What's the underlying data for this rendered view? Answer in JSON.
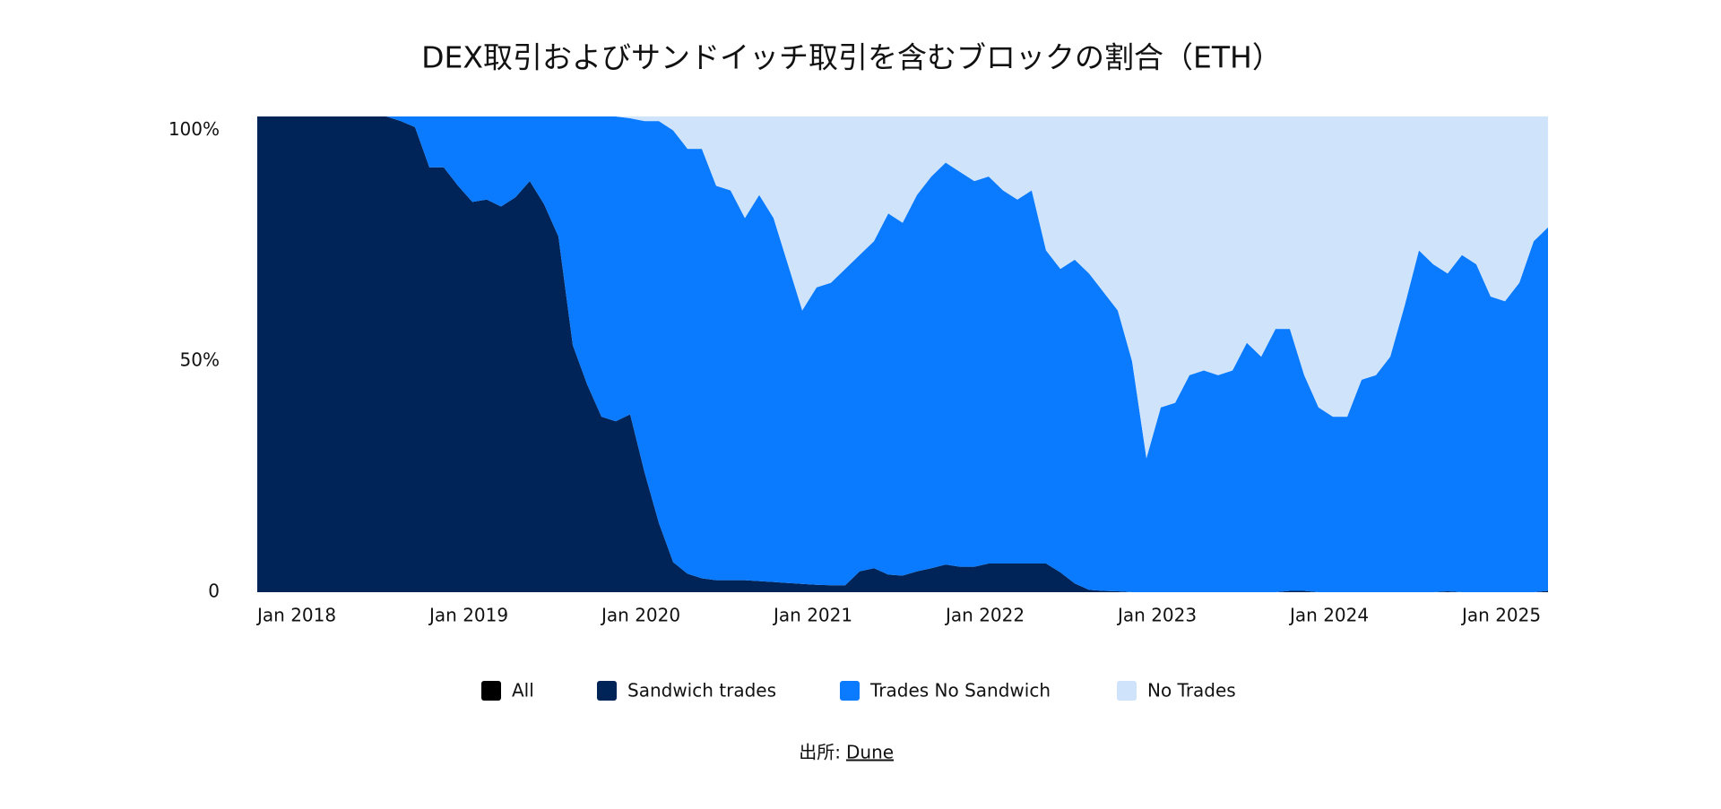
{
  "chart_data": {
    "type": "stacked_area",
    "title": "DEX取引およびサンドイッチ取引を含むブロックの割合（ETH）",
    "x": [
      "Jan 2018",
      null,
      null,
      null,
      null,
      null,
      null,
      null,
      null,
      null,
      null,
      null,
      "Jan 2019",
      null,
      null,
      null,
      null,
      null,
      null,
      null,
      null,
      null,
      null,
      null,
      "Jan 2020",
      null,
      null,
      null,
      null,
      null,
      null,
      null,
      null,
      null,
      null,
      null,
      "Jan 2021",
      null,
      null,
      null,
      null,
      null,
      null,
      null,
      null,
      null,
      null,
      null,
      "Jan 2022",
      null,
      null,
      null,
      null,
      null,
      null,
      null,
      null,
      null,
      null,
      null,
      "Jan 2023",
      null,
      null,
      null,
      null,
      null,
      null,
      null,
      null,
      null,
      null,
      null,
      "Jan 2024",
      null,
      null,
      null,
      null,
      null,
      null,
      null,
      null,
      null,
      null,
      null,
      "Jan 2025",
      null,
      null,
      null,
      null,
      null,
      null
    ],
    "series": [
      {
        "name": "All",
        "color": "#000000",
        "values": [
          0,
          0,
          0,
          0,
          0,
          0,
          0,
          0,
          0,
          0,
          0,
          0,
          0,
          0,
          0,
          0,
          0,
          0,
          0,
          0,
          0,
          0,
          0,
          0,
          0,
          0,
          0,
          0,
          0,
          0,
          0,
          0,
          0,
          0,
          0,
          0,
          0,
          0,
          0,
          0,
          0,
          0,
          0,
          0,
          0,
          0,
          0,
          0,
          0,
          0,
          0,
          0,
          0,
          0,
          0,
          0,
          0,
          0,
          0,
          0,
          0,
          0,
          0,
          0,
          0,
          0,
          0,
          0,
          0,
          0,
          0,
          0,
          0,
          0,
          0,
          0,
          0,
          0,
          0,
          0,
          0,
          0,
          0,
          0,
          0,
          0,
          0,
          0,
          0,
          0,
          0
        ]
      },
      {
        "name": "Sandwich trades",
        "color": "#002358",
        "values": [
          103,
          103,
          103,
          103,
          103,
          103,
          103,
          103,
          103,
          103,
          102,
          100.7,
          92,
          92,
          88,
          84.5,
          85,
          83.5,
          85.5,
          89,
          84,
          77,
          53.5,
          45,
          38,
          37,
          38.5,
          26,
          15,
          6.5,
          4,
          3,
          2.6,
          2.6,
          2.6,
          2.4,
          2.2,
          2,
          1.8,
          1.6,
          1.5,
          1.5,
          4.5,
          5.2,
          3.8,
          3.6,
          4.5,
          5.2,
          6,
          5.5,
          5.5,
          6.2,
          6.2,
          6.2,
          6.2,
          6.2,
          4.3,
          1.9,
          0.5,
          0.3,
          0.2,
          0,
          0,
          0,
          0,
          0,
          0,
          0,
          0,
          0,
          0,
          0,
          0.3,
          0.3,
          0,
          0,
          0,
          0,
          0,
          0,
          0,
          0,
          0,
          0.2,
          0,
          0,
          0,
          0,
          0,
          0,
          0.3
        ]
      },
      {
        "name": "Trades No Sandwich",
        "color": "#0a7bff",
        "values": [
          0,
          0,
          0,
          0,
          0,
          0,
          0,
          0,
          0,
          0,
          1,
          2.3,
          11,
          11,
          15,
          18.5,
          18,
          19.5,
          17.5,
          14,
          19,
          26,
          49.5,
          58,
          65,
          66,
          64.1,
          76,
          87,
          93.5,
          92,
          93,
          85.4,
          84.4,
          78.4,
          83.6,
          78.8,
          69,
          59.2,
          64.4,
          65.5,
          68.5,
          68.5,
          70.8,
          78.2,
          76.4,
          81.5,
          84.8,
          87,
          85.5,
          83.5,
          83.8,
          80.8,
          78.8,
          80.8,
          67.8,
          65.7,
          70.1,
          68.5,
          64.7,
          60.8,
          50,
          29,
          40,
          41,
          47,
          48,
          47,
          48,
          54,
          51,
          57,
          56.7,
          46.7,
          40,
          38,
          38,
          46,
          47,
          51,
          62,
          74,
          71,
          68.8,
          73,
          71,
          64,
          63,
          67,
          76,
          78.7
        ]
      },
      {
        "name": "No Trades",
        "color": "#cfe3fb",
        "values": [
          0,
          0,
          0,
          0,
          0,
          0,
          0,
          0,
          0,
          0,
          0,
          0,
          0,
          0,
          0,
          0,
          0,
          0,
          0,
          0,
          0,
          0,
          0,
          0,
          0,
          0,
          0.4,
          1,
          1,
          3,
          7,
          7,
          15,
          16,
          22,
          17,
          22,
          32,
          42,
          37,
          36,
          33,
          30,
          27,
          21,
          23,
          17,
          13,
          10,
          12,
          14,
          13,
          16,
          18,
          16,
          29,
          33,
          31,
          34,
          38,
          42,
          53,
          74,
          63,
          62,
          56,
          55,
          56,
          55,
          49,
          52,
          46,
          46,
          56,
          63,
          65,
          65,
          57,
          56,
          52,
          41,
          29,
          32,
          34,
          30,
          32,
          39,
          40,
          36,
          27,
          24
        ]
      }
    ],
    "ylim": [
      0,
      103
    ],
    "yticks": [
      0,
      {
        "value": 50,
        "label": "50%"
      },
      {
        "value": 100,
        "label": "100%"
      }
    ],
    "grid": false,
    "legend": "bottom",
    "source": {
      "label": "出所:",
      "link": "Dune"
    }
  }
}
